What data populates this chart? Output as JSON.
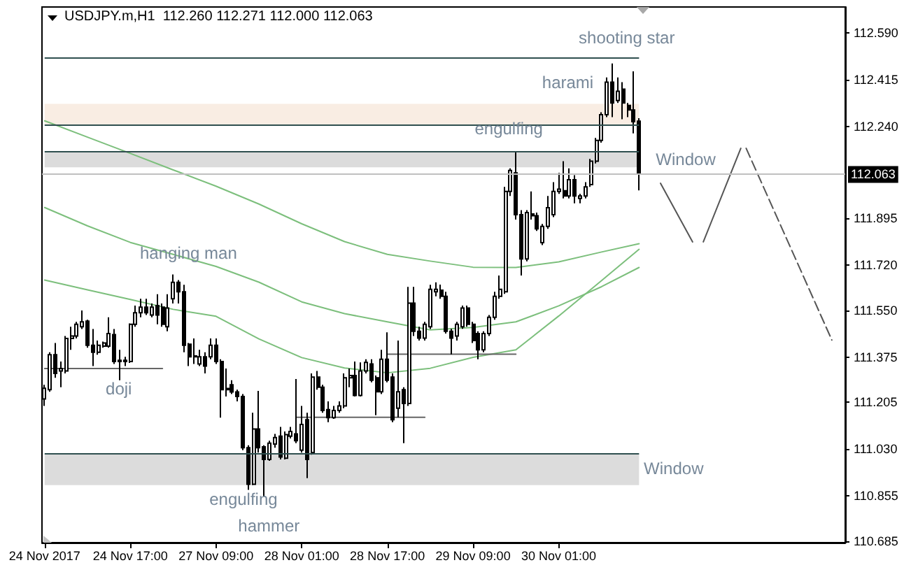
{
  "chart_data": {
    "type": "candlestick",
    "title": "USDJPY.m,H1  112.260 112.271 112.000 112.063",
    "categories": [
      "24 Nov 2017",
      null,
      null,
      null,
      null,
      null,
      null,
      null,
      null,
      null,
      null,
      null,
      null,
      null,
      null,
      null,
      "24 Nov 17:00",
      null,
      null,
      null,
      null,
      null,
      null,
      null,
      null,
      null,
      null,
      null,
      null,
      null,
      null,
      null,
      "27 Nov 09:00",
      null,
      null,
      null,
      null,
      null,
      null,
      null,
      null,
      null,
      null,
      null,
      null,
      null,
      null,
      null,
      "28 Nov 01:00",
      null,
      null,
      null,
      null,
      null,
      null,
      null,
      null,
      null,
      null,
      null,
      null,
      null,
      null,
      null,
      "28 Nov 17:00",
      null,
      null,
      null,
      null,
      null,
      null,
      null,
      null,
      null,
      null,
      null,
      null,
      null,
      null,
      null,
      "29 Nov 09:00",
      null,
      null,
      null,
      null,
      null,
      null,
      null,
      null,
      null,
      null,
      null,
      null,
      null,
      null,
      null,
      "30 Nov 01:00",
      null,
      null,
      null,
      null,
      null,
      null,
      null,
      null,
      null,
      null,
      null,
      null,
      null,
      null,
      null,
      null,
      null,
      null,
      null,
      null,
      null,
      null,
      null,
      null,
      null,
      null,
      null,
      null,
      null,
      null,
      null,
      null,
      null,
      null,
      null,
      null,
      null,
      null,
      null,
      null,
      null,
      null,
      null,
      null,
      null,
      null,
      null,
      null,
      null,
      null,
      null,
      null,
      null
    ],
    "ohlc": [
      [
        111.218,
        111.271,
        111.192,
        111.258
      ],
      [
        111.253,
        111.393,
        111.245,
        111.384
      ],
      [
        111.384,
        111.428,
        111.297,
        111.314
      ],
      [
        111.323,
        111.358,
        111.262,
        111.332
      ],
      [
        111.323,
        111.454,
        111.314,
        111.445
      ],
      [
        111.445,
        111.489,
        111.402,
        111.454
      ],
      [
        111.454,
        111.507,
        111.445,
        111.498
      ],
      [
        111.489,
        111.55,
        111.48,
        111.507
      ],
      [
        111.51,
        111.515,
        111.41,
        111.419
      ],
      [
        111.419,
        111.48,
        111.341,
        111.393
      ],
      [
        111.393,
        111.437,
        111.384,
        111.419
      ],
      [
        111.416,
        111.433,
        111.41,
        111.428
      ],
      [
        111.416,
        111.524,
        111.41,
        111.463
      ],
      [
        111.459,
        111.48,
        111.349,
        111.358
      ],
      [
        111.358,
        111.402,
        111.288,
        111.363
      ],
      [
        111.363,
        111.376,
        111.341,
        111.358
      ],
      [
        111.358,
        111.501,
        111.353,
        111.498
      ],
      [
        111.498,
        111.568,
        111.489,
        111.541
      ],
      [
        111.541,
        111.594,
        111.524,
        111.562
      ],
      [
        111.562,
        111.594,
        111.533,
        111.541
      ],
      [
        111.533,
        111.576,
        111.524,
        111.562
      ],
      [
        111.568,
        111.611,
        111.498,
        111.533
      ],
      [
        111.562,
        111.576,
        111.489,
        111.498
      ],
      [
        111.489,
        111.611,
        111.472,
        111.559
      ],
      [
        111.594,
        111.685,
        111.576,
        111.655
      ],
      [
        111.655,
        111.664,
        111.576,
        111.62
      ],
      [
        111.62,
        111.646,
        111.393,
        111.419
      ],
      [
        111.423,
        111.428,
        111.341,
        111.376
      ],
      [
        111.376,
        111.445,
        111.349,
        111.379
      ],
      [
        111.349,
        111.402,
        111.341,
        111.376
      ],
      [
        111.376,
        111.393,
        111.314,
        111.341
      ],
      [
        111.376,
        111.445,
        111.367,
        111.419
      ],
      [
        111.419,
        111.445,
        111.349,
        111.358
      ],
      [
        111.358,
        111.367,
        111.148,
        111.253
      ],
      [
        111.257,
        111.332,
        111.227,
        111.253
      ],
      [
        111.271,
        111.288,
        111.236,
        111.244
      ],
      [
        111.244,
        111.253,
        111.209,
        111.227
      ],
      [
        111.227,
        111.236,
        111.026,
        111.035
      ],
      [
        111.035,
        111.044,
        110.877,
        110.898
      ],
      [
        110.898,
        111.166,
        110.895,
        111.105
      ],
      [
        111.105,
        111.248,
        111.017,
        111.035
      ],
      [
        111.038,
        111.044,
        110.851,
        110.991
      ],
      [
        110.991,
        111.061,
        110.986,
        111.052
      ],
      [
        111.049,
        111.087,
        111.035,
        111.073
      ],
      [
        111.078,
        111.113,
        110.991,
        111.0
      ],
      [
        110.996,
        111.096,
        110.991,
        111.084
      ],
      [
        111.078,
        111.113,
        111.07,
        111.096
      ],
      [
        111.087,
        111.293,
        111.052,
        111.061
      ],
      [
        111.026,
        111.192,
        111.017,
        111.122
      ],
      [
        111.14,
        111.166,
        110.921,
        110.991
      ],
      [
        111.017,
        111.314,
        111.009,
        111.3
      ],
      [
        111.3,
        111.323,
        111.253,
        111.262
      ],
      [
        111.262,
        111.271,
        111.166,
        111.175
      ],
      [
        111.178,
        111.209,
        111.131,
        111.148
      ],
      [
        111.148,
        111.192,
        111.143,
        111.175
      ],
      [
        111.175,
        111.209,
        111.166,
        111.192
      ],
      [
        111.192,
        111.314,
        111.183,
        111.297
      ],
      [
        111.297,
        111.332,
        111.262,
        111.306
      ],
      [
        111.306,
        111.358,
        111.227,
        111.231
      ],
      [
        111.231,
        111.355,
        111.227,
        111.323
      ],
      [
        111.323,
        111.367,
        111.314,
        111.355
      ],
      [
        111.349,
        111.367,
        111.28,
        111.288
      ],
      [
        111.297,
        111.306,
        111.157,
        111.245
      ],
      [
        111.245,
        111.402,
        111.236,
        111.367
      ],
      [
        111.367,
        111.468,
        111.28,
        111.288
      ],
      [
        111.3,
        111.314,
        111.131,
        111.14
      ],
      [
        111.183,
        111.437,
        111.149,
        111.245
      ],
      [
        111.253,
        111.262,
        111.052,
        111.201
      ],
      [
        111.201,
        111.638,
        111.192,
        111.577
      ],
      [
        111.577,
        111.638,
        111.454,
        111.472
      ],
      [
        111.472,
        111.489,
        111.437,
        111.446
      ],
      [
        111.446,
        111.507,
        111.437,
        111.498
      ],
      [
        111.489,
        111.646,
        111.48,
        111.629
      ],
      [
        111.62,
        111.655,
        111.603,
        111.629
      ],
      [
        111.626,
        111.647,
        111.594,
        111.603
      ],
      [
        111.603,
        111.62,
        111.463,
        111.472
      ],
      [
        111.472,
        111.481,
        111.385,
        111.446
      ],
      [
        111.454,
        111.507,
        111.437,
        111.498
      ],
      [
        111.489,
        111.568,
        111.481,
        111.559
      ],
      [
        111.559,
        111.568,
        111.489,
        111.498
      ],
      [
        111.498,
        111.507,
        111.428,
        111.437
      ],
      [
        111.463,
        111.472,
        111.367,
        111.402
      ],
      [
        111.402,
        111.472,
        111.393,
        111.463
      ],
      [
        111.463,
        111.533,
        111.454,
        111.524
      ],
      [
        111.524,
        111.62,
        111.515,
        111.603
      ],
      [
        111.603,
        111.681,
        111.594,
        111.629
      ],
      [
        111.62,
        112.013,
        111.612,
        111.996
      ],
      [
        111.996,
        112.083,
        111.979,
        112.075
      ],
      [
        112.066,
        112.144,
        111.891,
        111.909
      ],
      [
        111.909,
        111.926,
        111.681,
        111.743
      ],
      [
        111.743,
        111.926,
        111.734,
        111.917
      ],
      [
        111.912,
        111.996,
        111.891,
        111.905
      ],
      [
        111.905,
        111.917,
        111.848,
        111.856
      ],
      [
        111.804,
        111.874,
        111.795,
        111.865
      ],
      [
        111.865,
        111.979,
        111.856,
        111.935
      ],
      [
        111.909,
        112.031,
        111.9,
        111.996
      ],
      [
        111.996,
        112.066,
        111.987,
        112.005
      ],
      [
        111.999,
        112.11,
        111.97,
        111.979
      ],
      [
        111.979,
        112.083,
        111.97,
        112.04
      ],
      [
        112.04,
        112.057,
        111.952,
        111.979
      ],
      [
        111.97,
        111.987,
        111.952,
        111.979
      ],
      [
        111.979,
        112.031,
        111.97,
        112.013
      ],
      [
        112.022,
        112.118,
        112.013,
        112.11
      ],
      [
        112.11,
        112.197,
        112.101,
        112.188
      ],
      [
        112.188,
        112.293,
        112.179,
        112.284
      ],
      [
        112.284,
        112.424,
        112.275,
        112.406
      ],
      [
        112.406,
        112.476,
        112.275,
        112.328
      ],
      [
        112.337,
        112.424,
        112.328,
        112.372
      ],
      [
        112.38,
        112.406,
        112.267,
        112.328
      ],
      [
        112.319,
        112.328,
        112.275,
        112.302
      ],
      [
        112.302,
        112.447,
        112.214,
        112.258
      ],
      [
        112.26,
        112.271,
        112.0,
        112.063
      ],
      null,
      null,
      null,
      null,
      null,
      null,
      null,
      null,
      null,
      null,
      null,
      null,
      null,
      null,
      null,
      null,
      null,
      null,
      null,
      null,
      null,
      null,
      null,
      null,
      null,
      null,
      null,
      null,
      null,
      null,
      null,
      null,
      null,
      null,
      null,
      null,
      null,
      null
    ],
    "series": [
      {
        "type": "line",
        "color": "#7cbf7c",
        "values": [
          112.261,
          null,
          null,
          null,
          null,
          null,
          null,
          null,
          112.2,
          null,
          null,
          null,
          null,
          null,
          null,
          null,
          112.139,
          null,
          null,
          null,
          null,
          null,
          null,
          null,
          112.077,
          null,
          null,
          null,
          null,
          null,
          null,
          null,
          112.016,
          null,
          null,
          null,
          null,
          null,
          null,
          null,
          111.949,
          null,
          null,
          null,
          null,
          null,
          null,
          null,
          111.875,
          null,
          null,
          null,
          null,
          null,
          null,
          null,
          111.808,
          null,
          null,
          null,
          null,
          null,
          null,
          null,
          111.76,
          null,
          null,
          null,
          null,
          null,
          null,
          null,
          111.735,
          null,
          null,
          null,
          null,
          null,
          null,
          null,
          111.712,
          null,
          null,
          null,
          null,
          null,
          null,
          null,
          111.711,
          null,
          null,
          null,
          null,
          null,
          null,
          null,
          111.732,
          null,
          null,
          null,
          null,
          null,
          null,
          null,
          111.769,
          null,
          null,
          null,
          null,
          null,
          null,
          111.8,
          null,
          null,
          null,
          null,
          null,
          null,
          null,
          null,
          null,
          null,
          null,
          null,
          null,
          null,
          null,
          null,
          null,
          null,
          null,
          null,
          null,
          null,
          null,
          null,
          null,
          null,
          null,
          null,
          null,
          null,
          null,
          null,
          null,
          null,
          null,
          null,
          null,
          null
        ]
      },
      {
        "type": "line",
        "color": "#7cbf7c",
        "values": [
          111.936,
          null,
          null,
          null,
          null,
          null,
          null,
          null,
          111.867,
          null,
          null,
          null,
          null,
          null,
          null,
          null,
          111.805,
          null,
          null,
          null,
          null,
          null,
          null,
          null,
          111.76,
          null,
          null,
          null,
          null,
          null,
          null,
          null,
          111.715,
          null,
          null,
          null,
          null,
          null,
          null,
          null,
          111.656,
          null,
          null,
          null,
          null,
          null,
          null,
          null,
          111.582,
          null,
          null,
          null,
          null,
          null,
          null,
          null,
          111.538,
          null,
          null,
          null,
          null,
          null,
          null,
          null,
          111.507,
          null,
          null,
          null,
          null,
          null,
          null,
          null,
          111.477,
          null,
          null,
          null,
          null,
          null,
          null,
          null,
          111.486,
          null,
          null,
          null,
          null,
          null,
          null,
          null,
          111.507,
          null,
          null,
          null,
          null,
          null,
          null,
          null,
          111.567,
          null,
          null,
          null,
          null,
          null,
          null,
          null,
          111.639,
          null,
          null,
          null,
          null,
          null,
          null,
          111.711,
          null,
          null,
          null,
          null,
          null,
          null,
          null,
          null,
          null,
          null,
          null,
          null,
          null,
          null,
          null,
          null,
          null,
          null,
          null,
          null,
          null,
          null,
          null,
          null,
          null,
          null,
          null,
          null,
          null,
          null,
          null,
          null,
          null,
          null,
          null,
          null,
          null,
          null
        ]
      },
      {
        "type": "line",
        "color": "#7cbf7c",
        "values": [
          111.664,
          null,
          null,
          null,
          null,
          null,
          null,
          null,
          111.627,
          null,
          null,
          null,
          null,
          null,
          null,
          null,
          111.591,
          null,
          null,
          null,
          null,
          null,
          null,
          null,
          111.554,
          null,
          null,
          null,
          null,
          null,
          null,
          null,
          111.528,
          null,
          null,
          null,
          null,
          null,
          null,
          null,
          111.443,
          null,
          null,
          null,
          null,
          null,
          null,
          null,
          111.373,
          null,
          null,
          null,
          null,
          null,
          null,
          null,
          111.334,
          null,
          null,
          null,
          null,
          null,
          null,
          null,
          111.316,
          null,
          null,
          null,
          null,
          null,
          null,
          null,
          111.333,
          null,
          null,
          null,
          null,
          null,
          null,
          null,
          111.374,
          null,
          null,
          null,
          null,
          null,
          null,
          null,
          111.402,
          null,
          null,
          null,
          null,
          null,
          null,
          null,
          111.529,
          null,
          null,
          null,
          null,
          null,
          null,
          null,
          111.662,
          null,
          null,
          null,
          null,
          null,
          null,
          111.779,
          null,
          null,
          null,
          null,
          null,
          null,
          null,
          null,
          null,
          null,
          null,
          null,
          null,
          null,
          null,
          null,
          null,
          null,
          null,
          null,
          null,
          null,
          null,
          null,
          null,
          null,
          null,
          null,
          null,
          null,
          null,
          null,
          null,
          null,
          null,
          null,
          null,
          null
        ]
      },
      {
        "type": "line",
        "color": "#666666",
        "values": [
          111.332,
          null,
          null,
          null,
          null,
          null,
          null,
          null,
          null,
          null,
          null,
          null,
          null,
          null,
          null,
          null,
          null,
          null,
          null,
          null,
          null,
          null,
          111.332,
          null,
          null,
          null,
          null,
          null,
          null,
          null,
          null,
          null,
          null,
          null,
          null,
          null,
          null,
          null,
          null,
          null,
          null,
          null,
          null,
          null,
          null,
          null,
          null,
          null,
          null,
          null,
          null,
          null,
          null,
          null,
          null,
          null,
          null,
          null,
          null,
          null,
          null,
          null,
          null,
          null,
          null,
          null,
          null,
          null,
          null,
          null,
          null,
          null,
          null,
          null,
          null,
          null,
          null,
          null,
          null,
          null,
          null,
          null,
          null,
          null,
          null,
          null,
          null,
          null,
          null,
          null,
          null,
          null,
          null,
          null,
          null,
          null,
          null,
          null,
          null,
          null,
          null,
          null,
          null,
          null,
          null,
          null,
          null,
          null,
          null,
          null,
          null,
          null,
          null,
          null,
          null,
          null,
          null,
          null,
          null,
          null,
          null,
          null,
          null,
          null,
          null,
          null,
          null,
          null,
          null,
          null,
          null,
          null,
          null,
          null,
          null,
          null,
          null,
          null,
          null,
          null,
          null,
          null,
          null,
          null,
          null,
          null,
          null,
          null,
          null,
          null
        ]
      },
      {
        "type": "line",
        "color": "#666666",
        "values": [
          null,
          null,
          null,
          null,
          null,
          null,
          null,
          null,
          null,
          null,
          null,
          null,
          null,
          null,
          null,
          null,
          null,
          null,
          null,
          null,
          null,
          null,
          null,
          null,
          null,
          null,
          null,
          null,
          null,
          null,
          null,
          null,
          null,
          null,
          null,
          null,
          null,
          null,
          null,
          null,
          null,
          null,
          null,
          null,
          null,
          null,
          null,
          111.149,
          null,
          null,
          null,
          null,
          null,
          null,
          null,
          null,
          null,
          null,
          null,
          null,
          null,
          null,
          null,
          null,
          null,
          null,
          null,
          null,
          null,
          null,
          null,
          111.149,
          null,
          null,
          null,
          null,
          null,
          null,
          null,
          null,
          null,
          null,
          null,
          null,
          null,
          null,
          null,
          null,
          null,
          null,
          null,
          null,
          null,
          null,
          null,
          null,
          null,
          null,
          null,
          null,
          null,
          null,
          null,
          null,
          null,
          null,
          null,
          null,
          null,
          null,
          null,
          null,
          null,
          null,
          null,
          null,
          null,
          null,
          null,
          null,
          null,
          null,
          null,
          null,
          null,
          null,
          null,
          null,
          null,
          null,
          null,
          null,
          null,
          null,
          null,
          null,
          null,
          null,
          null,
          null,
          null,
          null,
          null,
          null,
          null,
          null,
          null,
          null,
          null,
          null
        ]
      },
      {
        "type": "line",
        "color": "#666666",
        "values": [
          null,
          null,
          null,
          null,
          null,
          null,
          null,
          null,
          null,
          null,
          null,
          null,
          null,
          null,
          null,
          null,
          null,
          null,
          null,
          null,
          null,
          null,
          null,
          null,
          null,
          null,
          null,
          null,
          null,
          null,
          null,
          null,
          null,
          null,
          null,
          null,
          null,
          null,
          null,
          null,
          null,
          null,
          null,
          null,
          null,
          null,
          null,
          null,
          null,
          null,
          null,
          null,
          null,
          null,
          null,
          null,
          null,
          null,
          null,
          null,
          null,
          null,
          null,
          null,
          111.386,
          null,
          null,
          null,
          null,
          null,
          null,
          null,
          null,
          null,
          null,
          null,
          null,
          null,
          null,
          null,
          null,
          null,
          null,
          null,
          null,
          null,
          null,
          null,
          111.386,
          null,
          null,
          null,
          null,
          null,
          null,
          null,
          null,
          null,
          null,
          null,
          null,
          null,
          null,
          null,
          null,
          null,
          null,
          null,
          null,
          null,
          null,
          null,
          null,
          null,
          null,
          null,
          null,
          null,
          null,
          null,
          null,
          null,
          null,
          null,
          null,
          null,
          null,
          null,
          null,
          null,
          null,
          null,
          null,
          null,
          null,
          null,
          null,
          null,
          null,
          null,
          null,
          null,
          null,
          null,
          null,
          null,
          null,
          null,
          null,
          null
        ]
      },
      {
        "type": "line",
        "color": "#555555",
        "line_style": "solid",
        "values": [
          null,
          null,
          null,
          null,
          null,
          null,
          null,
          null,
          null,
          null,
          null,
          null,
          null,
          null,
          null,
          null,
          null,
          null,
          null,
          null,
          null,
          null,
          null,
          null,
          null,
          null,
          null,
          null,
          null,
          null,
          null,
          null,
          null,
          null,
          null,
          null,
          null,
          null,
          null,
          null,
          null,
          null,
          null,
          null,
          null,
          null,
          null,
          null,
          null,
          null,
          null,
          null,
          null,
          null,
          null,
          null,
          null,
          null,
          null,
          null,
          null,
          null,
          null,
          null,
          null,
          null,
          null,
          null,
          null,
          null,
          null,
          null,
          null,
          null,
          null,
          null,
          null,
          null,
          null,
          null,
          null,
          null,
          null,
          null,
          null,
          null,
          null,
          null,
          null,
          null,
          null,
          null,
          null,
          null,
          null,
          null,
          null,
          null,
          null,
          null,
          null,
          null,
          null,
          null,
          null,
          null,
          null,
          null,
          null,
          null,
          null,
          null,
          null,
          null,
          null,
          112.027,
          null,
          null,
          null,
          null,
          null,
          111.807,
          null,
          null,
          null,
          null,
          null,
          null,
          null,
          null,
          null,
          null,
          null,
          null,
          null,
          null,
          null,
          null,
          null,
          null,
          null,
          null,
          null,
          null,
          null,
          null,
          null,
          null,
          null,
          null
        ]
      },
      {
        "type": "line",
        "color": "#555555",
        "line_style": "solid",
        "values": [
          null,
          null,
          null,
          null,
          null,
          null,
          null,
          null,
          null,
          null,
          null,
          null,
          null,
          null,
          null,
          null,
          null,
          null,
          null,
          null,
          null,
          null,
          null,
          null,
          null,
          null,
          null,
          null,
          null,
          null,
          null,
          null,
          null,
          null,
          null,
          null,
          null,
          null,
          null,
          null,
          null,
          null,
          null,
          null,
          null,
          null,
          null,
          null,
          null,
          null,
          null,
          null,
          null,
          null,
          null,
          null,
          null,
          null,
          null,
          null,
          null,
          null,
          null,
          null,
          null,
          null,
          null,
          null,
          null,
          null,
          null,
          null,
          null,
          null,
          null,
          null,
          null,
          null,
          null,
          null,
          null,
          null,
          null,
          null,
          null,
          null,
          null,
          null,
          null,
          null,
          null,
          null,
          null,
          null,
          null,
          null,
          null,
          null,
          null,
          null,
          null,
          null,
          null,
          null,
          null,
          null,
          null,
          null,
          null,
          null,
          null,
          null,
          null,
          null,
          null,
          null,
          null,
          null,
          null,
          null,
          null,
          null,
          null,
          111.807,
          null,
          null,
          null,
          null,
          null,
          null,
          112.158,
          null,
          null,
          null,
          null,
          null,
          null,
          null,
          null,
          null,
          null,
          null,
          null,
          null,
          null,
          null,
          null,
          null,
          null,
          null
        ]
      },
      {
        "type": "line",
        "color": "#555555",
        "line_style": "dashed",
        "values": [
          null,
          null,
          null,
          null,
          null,
          null,
          null,
          null,
          null,
          null,
          null,
          null,
          null,
          null,
          null,
          null,
          null,
          null,
          null,
          null,
          null,
          null,
          null,
          null,
          null,
          null,
          null,
          null,
          null,
          null,
          null,
          null,
          null,
          null,
          null,
          null,
          null,
          null,
          null,
          null,
          null,
          null,
          null,
          null,
          null,
          null,
          null,
          null,
          null,
          null,
          null,
          null,
          null,
          null,
          null,
          null,
          null,
          null,
          null,
          null,
          null,
          null,
          null,
          null,
          null,
          null,
          null,
          null,
          null,
          null,
          null,
          null,
          null,
          null,
          null,
          null,
          null,
          null,
          null,
          null,
          null,
          null,
          null,
          null,
          null,
          null,
          null,
          null,
          null,
          null,
          null,
          null,
          null,
          null,
          null,
          null,
          null,
          null,
          null,
          null,
          null,
          null,
          null,
          null,
          null,
          null,
          null,
          null,
          null,
          null,
          null,
          null,
          null,
          null,
          null,
          null,
          null,
          null,
          null,
          null,
          null,
          null,
          null,
          null,
          null,
          null,
          null,
          null,
          null,
          null,
          null,
          112.158,
          null,
          null,
          null,
          null,
          null,
          null,
          null,
          null,
          null,
          null,
          null,
          null,
          null,
          null,
          null,
          111.439,
          null,
          null
        ]
      }
    ],
    "ylim": [
      110.679,
      112.688
    ],
    "yticks": [
      110.685,
      110.855,
      {
        "value": 111.03,
        "label": "111.030"
      },
      111.205,
      111.375,
      {
        "value": 111.55,
        "label": "111.550"
      },
      {
        "value": 111.72,
        "label": "111.720"
      },
      111.895,
      {
        "value": 112.24,
        "label": "112.240"
      },
      112.415,
      {
        "value": 112.59,
        "label": "112.590"
      }
    ],
    "ref_lines": [
      {
        "axis": "y",
        "value": 112.5,
        "color": "#2f4f4f"
      },
      {
        "axis": "y",
        "value": 112.245,
        "color": "#2f4f4f"
      },
      {
        "axis": "y",
        "value": 112.145,
        "color": "#2f4f4f"
      },
      {
        "axis": "y",
        "value": 111.012,
        "color": "#2f4f4f"
      },
      {
        "axis": "y",
        "value": 112.063,
        "label": "112.063",
        "color": "#c0c0c0"
      }
    ],
    "bands": [
      {
        "axis": "y",
        "from": 112.245,
        "to": 112.325,
        "color": "#f9ede3"
      },
      {
        "axis": "y",
        "from": 112.087,
        "to": 112.145,
        "color": "#dcdcdc"
      },
      {
        "axis": "y",
        "from": 110.895,
        "to": 111.012,
        "color": "#dcdcdc"
      }
    ],
    "annotations": [
      "shooting star",
      "harami",
      "engulfing",
      "Window",
      "hanging man",
      "doji",
      "Window",
      "engulfing",
      "hammer"
    ],
    "marker": "none",
    "grid": false
  }
}
